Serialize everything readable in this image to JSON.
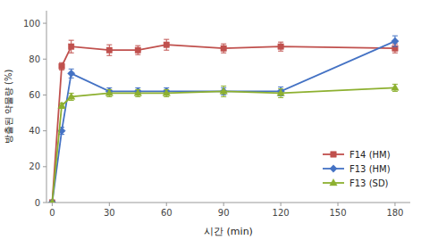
{
  "chart_data": {
    "type": "line",
    "xlabel": "시간 (min)",
    "ylabel": "방출된 약물량 (%)",
    "x": [
      0,
      5,
      10,
      30,
      45,
      60,
      90,
      120,
      180
    ],
    "series": [
      {
        "name": "F14 (HM)",
        "color": "#C0504D",
        "marker": "square",
        "values": [
          0,
          76,
          87,
          85,
          85,
          88,
          86,
          87,
          86
        ],
        "errors": [
          0,
          2.0,
          3.5,
          3.0,
          2.5,
          3.0,
          2.5,
          2.5,
          2.5
        ]
      },
      {
        "name": "F13 (HM)",
        "color": "#4472C4",
        "marker": "diamond",
        "values": [
          0,
          40,
          72,
          62,
          62,
          62,
          62,
          62,
          90
        ],
        "errors": [
          0,
          2.0,
          2.5,
          2.0,
          2.0,
          2.0,
          2.0,
          2.5,
          3.0
        ]
      },
      {
        "name": "F13 (SD)",
        "color": "#8DB030",
        "marker": "triangle",
        "values": [
          0,
          54,
          59,
          61,
          61,
          61,
          62,
          61,
          64
        ],
        "errors": [
          0,
          1.5,
          2.0,
          2.0,
          2.0,
          2.0,
          3.0,
          2.5,
          2.0
        ]
      }
    ],
    "xlim": [
      -3,
      188
    ],
    "ylim": [
      0,
      107
    ],
    "xticks": [
      0,
      30,
      60,
      90,
      120,
      150,
      180
    ],
    "yticks": [
      0,
      20,
      40,
      60,
      80,
      100
    ],
    "grid": false,
    "legend": "lower right"
  }
}
